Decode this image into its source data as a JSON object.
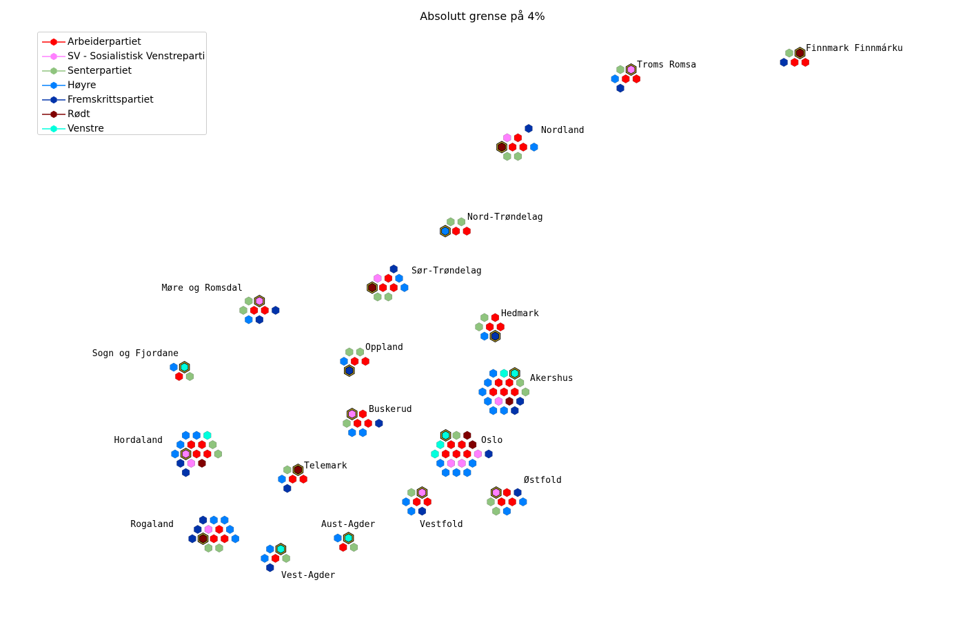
{
  "title": "Absolutt grense på 4%",
  "parties": [
    {
      "key": "Ap",
      "label": "Arbeiderpartiet",
      "color": "#ff0000"
    },
    {
      "key": "SV",
      "label": "SV - Sosialistisk Venstreparti",
      "color": "#ff80ff"
    },
    {
      "key": "Sp",
      "label": "Senterpartiet",
      "color": "#8fc47e"
    },
    {
      "key": "H",
      "label": "Høyre",
      "color": "#0080ff"
    },
    {
      "key": "FrP",
      "label": "Fremskrittspartiet",
      "color": "#0033aa"
    },
    {
      "key": "R",
      "label": "Rødt",
      "color": "#800000"
    },
    {
      "key": "V",
      "label": "Venstre",
      "color": "#00ffdd"
    }
  ],
  "counties": [
    {
      "name": "Finnmark Finnmárku",
      "seats": [
        {
          "p": "Sp",
          "q": 0,
          "r": 0
        },
        {
          "p": "R",
          "q": 1,
          "r": 0,
          "hl": true
        },
        {
          "p": "FrP",
          "q": -0.5,
          "r": 1
        },
        {
          "p": "Ap",
          "q": 0.5,
          "r": 1
        },
        {
          "p": "Ap",
          "q": 1.5,
          "r": 1
        }
      ]
    },
    {
      "name": "Troms Romsa",
      "seats": [
        {
          "p": "Sp",
          "q": 0,
          "r": 0
        },
        {
          "p": "SV",
          "q": 1,
          "r": 0,
          "hl": true
        },
        {
          "p": "H",
          "q": -0.5,
          "r": 1
        },
        {
          "p": "Ap",
          "q": 0.5,
          "r": 1
        },
        {
          "p": "Ap",
          "q": 1.5,
          "r": 1
        },
        {
          "p": "FrP",
          "q": 0,
          "r": 2
        }
      ]
    },
    {
      "name": "Nordland",
      "seats": [
        {
          "p": "FrP",
          "q": 2.5,
          "r": -1
        },
        {
          "p": "SV",
          "q": 0.5,
          "r": 0
        },
        {
          "p": "Ap",
          "q": 1.5,
          "r": 0
        },
        {
          "p": "R",
          "q": 0,
          "r": 1,
          "hl": true
        },
        {
          "p": "Ap",
          "q": 1,
          "r": 1
        },
        {
          "p": "Ap",
          "q": 2,
          "r": 1
        },
        {
          "p": "H",
          "q": 3,
          "r": 1
        },
        {
          "p": "Sp",
          "q": 0.5,
          "r": 2
        },
        {
          "p": "Sp",
          "q": 1.5,
          "r": 2
        }
      ]
    },
    {
      "name": "Nord-Trøndelag",
      "seats": [
        {
          "p": "Sp",
          "q": 0.5,
          "r": 0
        },
        {
          "p": "Sp",
          "q": 1.5,
          "r": 0
        },
        {
          "p": "H",
          "q": 0,
          "r": 1,
          "hl": true
        },
        {
          "p": "Ap",
          "q": 1,
          "r": 1
        },
        {
          "p": "Ap",
          "q": 2,
          "r": 1
        }
      ]
    },
    {
      "name": "Sør-Trøndelag",
      "seats": [
        {
          "p": "FrP",
          "q": 2,
          "r": -1
        },
        {
          "p": "SV",
          "q": 0.5,
          "r": 0
        },
        {
          "p": "Ap",
          "q": 1.5,
          "r": 0
        },
        {
          "p": "H",
          "q": 2.5,
          "r": 0
        },
        {
          "p": "R",
          "q": 0,
          "r": 1,
          "hl": true
        },
        {
          "p": "Ap",
          "q": 1,
          "r": 1
        },
        {
          "p": "Ap",
          "q": 2,
          "r": 1
        },
        {
          "p": "H",
          "q": 3,
          "r": 1
        },
        {
          "p": "Sp",
          "q": 0.5,
          "r": 2
        },
        {
          "p": "Sp",
          "q": 1.5,
          "r": 2
        }
      ]
    },
    {
      "name": "Møre og Romsdal",
      "seats": [
        {
          "p": "Sp",
          "q": 0.5,
          "r": 0
        },
        {
          "p": "SV",
          "q": 1.5,
          "r": 0,
          "hl": true
        },
        {
          "p": "Sp",
          "q": 0,
          "r": 1
        },
        {
          "p": "Ap",
          "q": 1,
          "r": 1
        },
        {
          "p": "Ap",
          "q": 2,
          "r": 1
        },
        {
          "p": "FrP",
          "q": 3,
          "r": 1
        },
        {
          "p": "H",
          "q": 0.5,
          "r": 2
        },
        {
          "p": "FrP",
          "q": 1.5,
          "r": 2
        }
      ]
    },
    {
      "name": "Hedmark",
      "seats": [
        {
          "p": "Sp",
          "q": 0.5,
          "r": 0
        },
        {
          "p": "Ap",
          "q": 1.5,
          "r": 0
        },
        {
          "p": "Sp",
          "q": 0,
          "r": 1
        },
        {
          "p": "Ap",
          "q": 1,
          "r": 1
        },
        {
          "p": "Ap",
          "q": 2,
          "r": 1
        },
        {
          "p": "H",
          "q": 0.5,
          "r": 2
        },
        {
          "p": "FrP",
          "q": 1.5,
          "r": 2,
          "hl": true
        }
      ]
    },
    {
      "name": "Sogn og Fjordane",
      "seats": [
        {
          "p": "H",
          "q": 0,
          "r": 0
        },
        {
          "p": "V",
          "q": 1,
          "r": 0,
          "hl": true
        },
        {
          "p": "Ap",
          "q": 0.5,
          "r": 1
        },
        {
          "p": "Sp",
          "q": 1.5,
          "r": 1
        }
      ]
    },
    {
      "name": "Oppland",
      "seats": [
        {
          "p": "Sp",
          "q": 0.5,
          "r": 0
        },
        {
          "p": "Sp",
          "q": 1.5,
          "r": 0
        },
        {
          "p": "H",
          "q": 0,
          "r": 1
        },
        {
          "p": "Ap",
          "q": 1,
          "r": 1
        },
        {
          "p": "Ap",
          "q": 2,
          "r": 1
        },
        {
          "p": "FrP",
          "q": 0.5,
          "r": 2,
          "hl": true
        }
      ]
    },
    {
      "name": "Akershus",
      "seats": [
        {
          "p": "H",
          "q": 1,
          "r": 0
        },
        {
          "p": "V",
          "q": 2,
          "r": 0
        },
        {
          "p": "V",
          "q": 3,
          "r": 0,
          "hl": true
        },
        {
          "p": "H",
          "q": 0.5,
          "r": 1
        },
        {
          "p": "Ap",
          "q": 1.5,
          "r": 1
        },
        {
          "p": "Ap",
          "q": 2.5,
          "r": 1
        },
        {
          "p": "Sp",
          "q": 3.5,
          "r": 1
        },
        {
          "p": "H",
          "q": 0,
          "r": 2
        },
        {
          "p": "Ap",
          "q": 1,
          "r": 2
        },
        {
          "p": "Ap",
          "q": 2,
          "r": 2
        },
        {
          "p": "Ap",
          "q": 3,
          "r": 2
        },
        {
          "p": "Sp",
          "q": 4,
          "r": 2
        },
        {
          "p": "H",
          "q": 0.5,
          "r": 3
        },
        {
          "p": "SV",
          "q": 1.5,
          "r": 3
        },
        {
          "p": "R",
          "q": 2.5,
          "r": 3
        },
        {
          "p": "FrP",
          "q": 3.5,
          "r": 3
        },
        {
          "p": "H",
          "q": 1,
          "r": 4
        },
        {
          "p": "H",
          "q": 2,
          "r": 4
        },
        {
          "p": "FrP",
          "q": 3,
          "r": 4
        }
      ]
    },
    {
      "name": "Buskerud",
      "seats": [
        {
          "p": "SV",
          "q": 0.5,
          "r": 0,
          "hl": true
        },
        {
          "p": "Ap",
          "q": 1.5,
          "r": 0
        },
        {
          "p": "Sp",
          "q": 0,
          "r": 1
        },
        {
          "p": "Ap",
          "q": 1,
          "r": 1
        },
        {
          "p": "Ap",
          "q": 2,
          "r": 1
        },
        {
          "p": "FrP",
          "q": 3,
          "r": 1
        },
        {
          "p": "H",
          "q": 0.5,
          "r": 2
        },
        {
          "p": "H",
          "q": 1.5,
          "r": 2
        }
      ]
    },
    {
      "name": "Hordaland",
      "seats": [
        {
          "p": "H",
          "q": 1,
          "r": 0
        },
        {
          "p": "H",
          "q": 2,
          "r": 0
        },
        {
          "p": "V",
          "q": 3,
          "r": 0
        },
        {
          "p": "H",
          "q": 0.5,
          "r": 1
        },
        {
          "p": "Ap",
          "q": 1.5,
          "r": 1
        },
        {
          "p": "Ap",
          "q": 2.5,
          "r": 1
        },
        {
          "p": "Sp",
          "q": 3.5,
          "r": 1
        },
        {
          "p": "H",
          "q": 0,
          "r": 2
        },
        {
          "p": "SV",
          "q": 1,
          "r": 2,
          "hl": true
        },
        {
          "p": "Ap",
          "q": 2,
          "r": 2
        },
        {
          "p": "Ap",
          "q": 3,
          "r": 2
        },
        {
          "p": "Sp",
          "q": 4,
          "r": 2
        },
        {
          "p": "FrP",
          "q": 0.5,
          "r": 3
        },
        {
          "p": "SV",
          "q": 1.5,
          "r": 3
        },
        {
          "p": "R",
          "q": 2.5,
          "r": 3
        },
        {
          "p": "FrP",
          "q": 1,
          "r": 4
        }
      ]
    },
    {
      "name": "Oslo",
      "seats": [
        {
          "p": "V",
          "q": 1,
          "r": 0,
          "hl": true
        },
        {
          "p": "Sp",
          "q": 2,
          "r": 0
        },
        {
          "p": "R",
          "q": 3,
          "r": 0
        },
        {
          "p": "V",
          "q": 0.5,
          "r": 1
        },
        {
          "p": "Ap",
          "q": 1.5,
          "r": 1
        },
        {
          "p": "Ap",
          "q": 2.5,
          "r": 1
        },
        {
          "p": "R",
          "q": 3.5,
          "r": 1
        },
        {
          "p": "V",
          "q": 0,
          "r": 2
        },
        {
          "p": "Ap",
          "q": 1,
          "r": 2
        },
        {
          "p": "Ap",
          "q": 2,
          "r": 2
        },
        {
          "p": "Ap",
          "q": 3,
          "r": 2
        },
        {
          "p": "SV",
          "q": 4,
          "r": 2
        },
        {
          "p": "FrP",
          "q": 5,
          "r": 2
        },
        {
          "p": "H",
          "q": 0.5,
          "r": 3
        },
        {
          "p": "SV",
          "q": 1.5,
          "r": 3
        },
        {
          "p": "SV",
          "q": 2.5,
          "r": 3
        },
        {
          "p": "H",
          "q": 3.5,
          "r": 3
        },
        {
          "p": "H",
          "q": 1,
          "r": 4
        },
        {
          "p": "H",
          "q": 2,
          "r": 4
        },
        {
          "p": "H",
          "q": 3,
          "r": 4
        }
      ]
    },
    {
      "name": "Telemark",
      "seats": [
        {
          "p": "Sp",
          "q": 0.5,
          "r": 0
        },
        {
          "p": "R",
          "q": 1.5,
          "r": 0,
          "hl": true
        },
        {
          "p": "H",
          "q": 0,
          "r": 1
        },
        {
          "p": "Ap",
          "q": 1,
          "r": 1
        },
        {
          "p": "Ap",
          "q": 2,
          "r": 1
        },
        {
          "p": "FrP",
          "q": 0.5,
          "r": 2
        }
      ]
    },
    {
      "name": "Østfold",
      "seats": [
        {
          "p": "SV",
          "q": 0.5,
          "r": 0,
          "hl": true
        },
        {
          "p": "Ap",
          "q": 1.5,
          "r": 0
        },
        {
          "p": "FrP",
          "q": 2.5,
          "r": 0
        },
        {
          "p": "Sp",
          "q": 0,
          "r": 1
        },
        {
          "p": "Ap",
          "q": 1,
          "r": 1
        },
        {
          "p": "Ap",
          "q": 2,
          "r": 1
        },
        {
          "p": "H",
          "q": 3,
          "r": 1
        },
        {
          "p": "Sp",
          "q": 0.5,
          "r": 2
        },
        {
          "p": "H",
          "q": 1.5,
          "r": 2
        }
      ]
    },
    {
      "name": "Vestfold",
      "seats": [
        {
          "p": "Sp",
          "q": 0.5,
          "r": 0
        },
        {
          "p": "SV",
          "q": 1.5,
          "r": 0,
          "hl": true
        },
        {
          "p": "H",
          "q": 0,
          "r": 1
        },
        {
          "p": "Ap",
          "q": 1,
          "r": 1
        },
        {
          "p": "Ap",
          "q": 2,
          "r": 1
        },
        {
          "p": "H",
          "q": 0.5,
          "r": 2
        },
        {
          "p": "FrP",
          "q": 1.5,
          "r": 2
        }
      ]
    },
    {
      "name": "Rogaland",
      "seats": [
        {
          "p": "FrP",
          "q": 1,
          "r": 0
        },
        {
          "p": "H",
          "q": 2,
          "r": 0
        },
        {
          "p": "H",
          "q": 3,
          "r": 0
        },
        {
          "p": "FrP",
          "q": 0.5,
          "r": 1
        },
        {
          "p": "SV",
          "q": 1.5,
          "r": 1
        },
        {
          "p": "Ap",
          "q": 2.5,
          "r": 1
        },
        {
          "p": "H",
          "q": 3.5,
          "r": 1
        },
        {
          "p": "FrP",
          "q": 0,
          "r": 2
        },
        {
          "p": "R",
          "q": 1,
          "r": 2,
          "hl": true
        },
        {
          "p": "Ap",
          "q": 2,
          "r": 2
        },
        {
          "p": "Ap",
          "q": 3,
          "r": 2
        },
        {
          "p": "H",
          "q": 4,
          "r": 2
        },
        {
          "p": "Sp",
          "q": 1.5,
          "r": 3
        },
        {
          "p": "Sp",
          "q": 2.5,
          "r": 3
        }
      ]
    },
    {
      "name": "Aust-Agder",
      "seats": [
        {
          "p": "H",
          "q": 0,
          "r": 0
        },
        {
          "p": "V",
          "q": 1,
          "r": 0,
          "hl": true
        },
        {
          "p": "Ap",
          "q": 0.5,
          "r": 1
        },
        {
          "p": "Sp",
          "q": 1.5,
          "r": 1
        }
      ]
    },
    {
      "name": "Vest-Agder",
      "seats": [
        {
          "p": "H",
          "q": 0.5,
          "r": 0
        },
        {
          "p": "V",
          "q": 1.5,
          "r": 0,
          "hl": true
        },
        {
          "p": "H",
          "q": 0,
          "r": 1
        },
        {
          "p": "Ap",
          "q": 1,
          "r": 1
        },
        {
          "p": "Sp",
          "q": 2,
          "r": 1
        },
        {
          "p": "FrP",
          "q": 0.5,
          "r": 2
        }
      ]
    }
  ]
}
